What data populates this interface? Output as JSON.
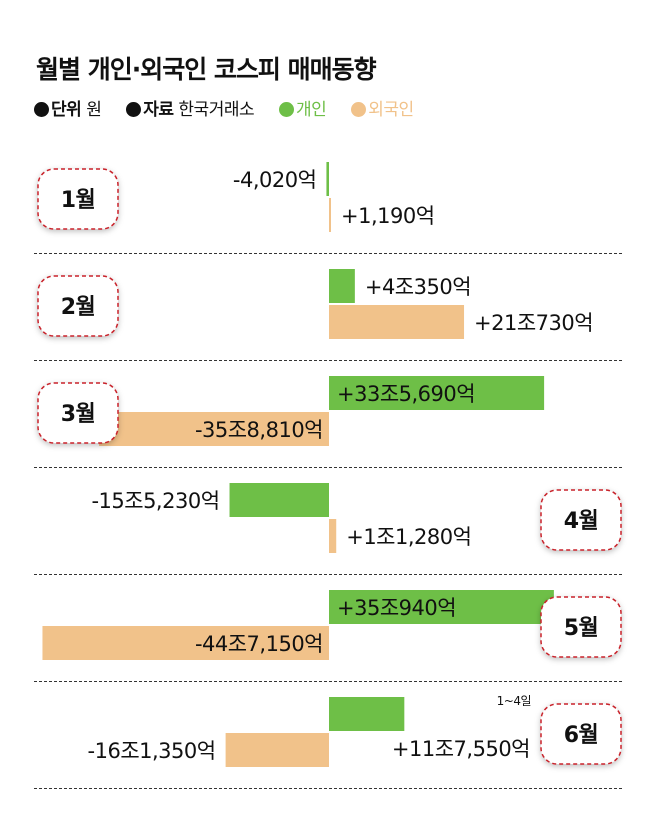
{
  "title": "월별 개인·외국인 코스피 매매동향",
  "legend": {
    "unit_key": "단위",
    "unit_value": "원",
    "source_key": "자료",
    "source_value": "한국거래소",
    "individual_label": "개인",
    "foreign_label": "외국인"
  },
  "colors": {
    "individual": "#6ebf47",
    "foreign": "#f1c28a",
    "badge_border": "#c8232c",
    "divider": "#333333"
  },
  "chart_data": {
    "type": "bar",
    "orientation": "horizontal",
    "value_unit": "억",
    "categories": [
      "1월",
      "2월",
      "3월",
      "4월",
      "5월",
      "6월"
    ],
    "series": [
      {
        "name": "개인",
        "values": [
          -4020,
          40350,
          335690,
          -155230,
          350940,
          117550
        ],
        "labels": [
          "-4,020억",
          "+4조350억",
          "+33조5,690억",
          "-15조5,230억",
          "+35조940억",
          ""
        ]
      },
      {
        "name": "외국인",
        "values": [
          1190,
          210730,
          -358810,
          11280,
          -447150,
          -161350
        ],
        "labels": [
          "+1,190억",
          "+21조730억",
          "-35조8,810억",
          "+1조1,280억",
          "-44조7,150억",
          "-16조1,350억"
        ]
      }
    ],
    "annotations": [
      {
        "category": "6월",
        "text": "+11조7,550억"
      },
      {
        "category": "6월",
        "text": "1~4일"
      }
    ]
  }
}
